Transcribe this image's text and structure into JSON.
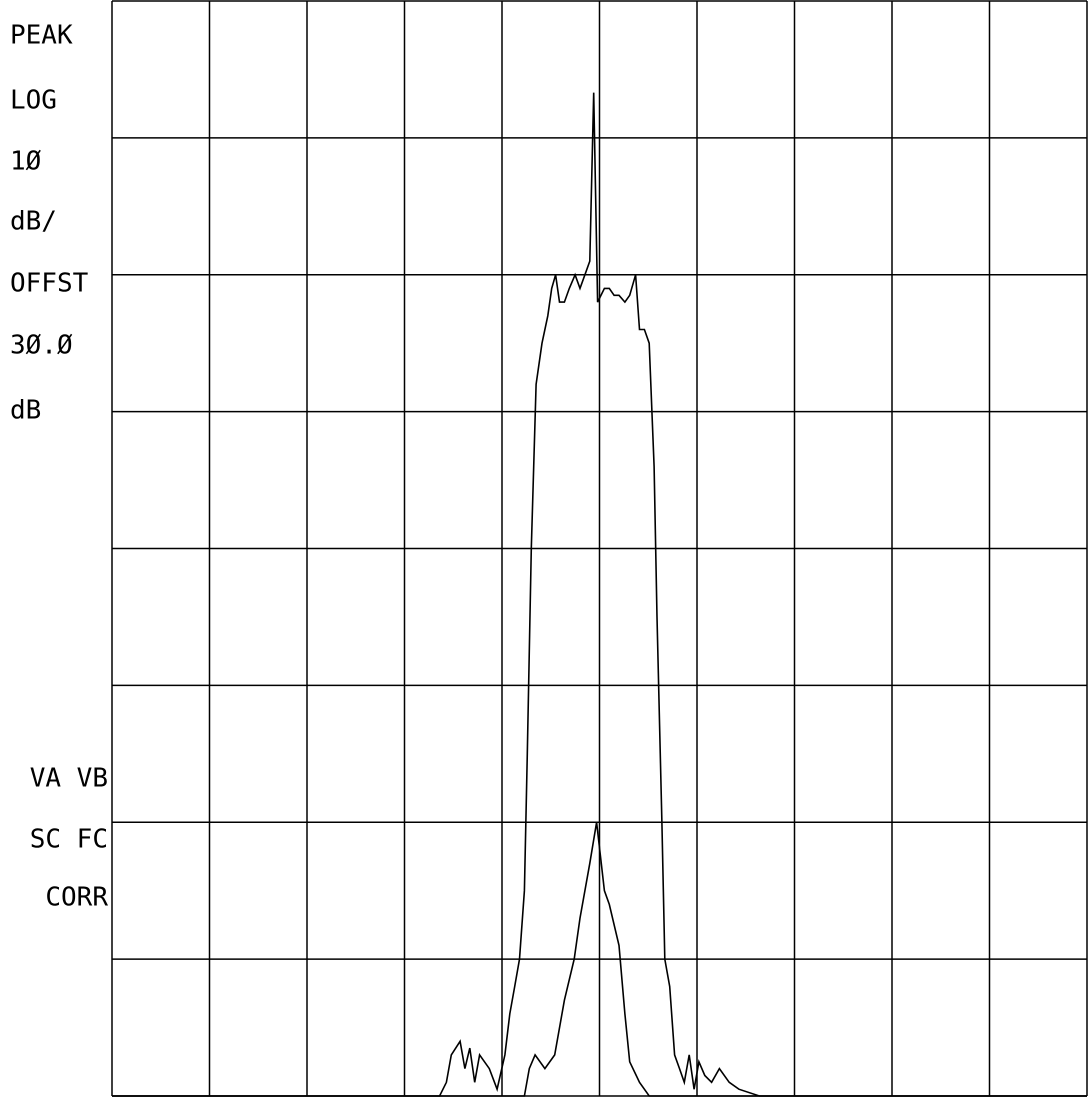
{
  "chart_data": {
    "type": "line",
    "annotations": [
      "PEAK",
      "LOG",
      "1Ø",
      "dB/",
      "OFFST",
      "3Ø.Ø",
      "dB",
      "VA VB",
      "SC FC",
      "CORR"
    ],
    "xlim": [
      0,
      10
    ],
    "ylim": [
      0,
      8
    ],
    "xticks": [
      0,
      1,
      2,
      3,
      4,
      5,
      6,
      7,
      8,
      9,
      10
    ],
    "yticks": [
      0,
      1,
      2,
      3,
      4,
      5,
      6,
      7,
      8
    ],
    "grid": true,
    "series": [
      {
        "color": "#000000",
        "x": [
          0,
          3.36,
          3.43,
          3.48,
          3.57,
          3.62,
          3.67,
          3.72,
          3.77,
          3.87,
          3.95,
          4.03,
          4.08,
          4.13,
          4.18,
          4.23,
          4.26,
          4.3,
          4.35,
          4.41,
          4.47,
          4.51,
          4.55,
          4.59,
          4.64,
          4.69,
          4.75,
          4.8,
          4.85,
          4.9,
          4.94,
          4.98,
          5.05,
          5.1,
          5.15,
          5.2,
          5.26,
          5.31,
          5.37,
          5.41,
          5.46,
          5.51,
          5.56,
          5.59,
          5.64,
          5.67,
          5.72,
          5.77,
          5.82,
          5.87,
          5.92,
          5.97,
          6.02,
          6.08,
          6.15,
          6.23,
          6.33,
          6.43,
          6.64,
          10
        ],
        "values": [
          0,
          0,
          0.1,
          0.3,
          0.4,
          0.2,
          0.35,
          0.1,
          0.3,
          0.2,
          0.05,
          0.3,
          0.6,
          0.8,
          1.0,
          1.5,
          2.5,
          4.0,
          5.2,
          5.5,
          5.7,
          5.9,
          6.0,
          5.8,
          5.8,
          5.9,
          6.0,
          5.9,
          6.0,
          6.1,
          7.33,
          5.8,
          5.9,
          5.9,
          5.85,
          5.85,
          5.8,
          5.85,
          6.0,
          5.6,
          5.6,
          5.5,
          4.6,
          3.5,
          2.0,
          1.0,
          0.8,
          0.3,
          0.2,
          0.1,
          0.3,
          0.05,
          0.25,
          0.15,
          0.1,
          0.2,
          0.1,
          0.05,
          0,
          0
        ]
      },
      {
        "color": "#000000",
        "x": [
          0,
          4.23,
          4.28,
          4.34,
          4.44,
          4.54,
          4.64,
          4.74,
          4.8,
          4.9,
          4.97,
          5.05,
          5.1,
          5.2,
          5.26,
          5.31,
          5.41,
          5.51,
          10
        ],
        "values": [
          0,
          0,
          0.2,
          0.3,
          0.2,
          0.3,
          0.7,
          1.0,
          1.3,
          1.7,
          2.0,
          1.5,
          1.4,
          1.1,
          0.6,
          0.25,
          0.1,
          0,
          0
        ]
      }
    ]
  }
}
